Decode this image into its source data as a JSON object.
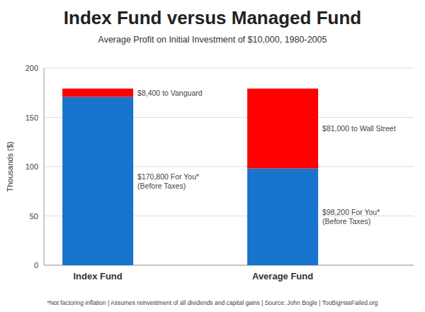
{
  "chart_data": {
    "type": "bar",
    "stacked": true,
    "title": "Index Fund versus Managed Fund",
    "subtitle": "Average Profit on Initial Investment of $10,000, 1980-2005",
    "footnote": "*Not factoring inflation  |  Assumes reinvestment of all dividends and capital gains  |  Source: John Bogle  |  TooBigHasFailed.org",
    "ylabel": "Thousands ($)",
    "categories": [
      "Index Fund",
      "Average Fund"
    ],
    "series": [
      {
        "color": "#1874CD",
        "values": [
          170.8,
          98.2
        ],
        "value_labels": [
          "$170,800 For You*\n(Before Taxes)",
          "$98,200 For You*\n(Before Taxes)"
        ]
      },
      {
        "color": "#FF0000",
        "values": [
          8.4,
          81.0
        ],
        "value_labels": [
          "$8,400 to Vanguard",
          "$81,000 to Wall Street"
        ]
      }
    ],
    "ylim": [
      0,
      200
    ],
    "yticks": [
      0,
      50,
      100,
      150,
      200
    ],
    "grid": true,
    "data_labels": true
  }
}
